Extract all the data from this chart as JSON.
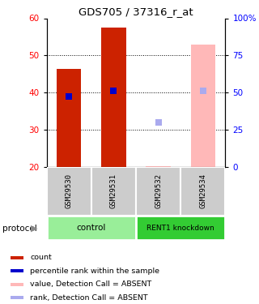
{
  "title": "GDS705 / 37316_r_at",
  "samples": [
    "GSM29530",
    "GSM29531",
    "GSM29532",
    "GSM29534"
  ],
  "ylim_left": [
    20,
    60
  ],
  "ylim_right": [
    0,
    100
  ],
  "yticks_left": [
    20,
    30,
    40,
    50,
    60
  ],
  "yticks_right": [
    0,
    25,
    50,
    75,
    100
  ],
  "ytick_labels_right": [
    "0",
    "25",
    "50",
    "75",
    "100%"
  ],
  "bars": [
    {
      "x": 0,
      "value": 46.5,
      "rank": 39.0,
      "absent": false
    },
    {
      "x": 1,
      "value": 57.5,
      "rank": 40.5,
      "absent": false
    },
    {
      "x": 2,
      "value": 20.2,
      "rank": 32.0,
      "absent": true
    },
    {
      "x": 3,
      "value": 53.0,
      "rank": 40.5,
      "absent": true
    }
  ],
  "bar_width": 0.55,
  "bar_color_present": "#cc2200",
  "bar_color_absent": "#ffb8b8",
  "rank_color_present": "#0000cc",
  "rank_color_absent": "#aaaaee",
  "rank_marker_size": 28,
  "groups": [
    {
      "label": "control",
      "color": "#99ee99"
    },
    {
      "label": "RENT1 knockdown",
      "color": "#33cc33"
    }
  ],
  "protocol_label": "protocol",
  "sample_box_color": "#cccccc",
  "legend_items": [
    {
      "label": "count",
      "color": "#cc2200"
    },
    {
      "label": "percentile rank within the sample",
      "color": "#0000cc"
    },
    {
      "label": "value, Detection Call = ABSENT",
      "color": "#ffb8b8"
    },
    {
      "label": "rank, Detection Call = ABSENT",
      "color": "#aaaaee"
    }
  ]
}
